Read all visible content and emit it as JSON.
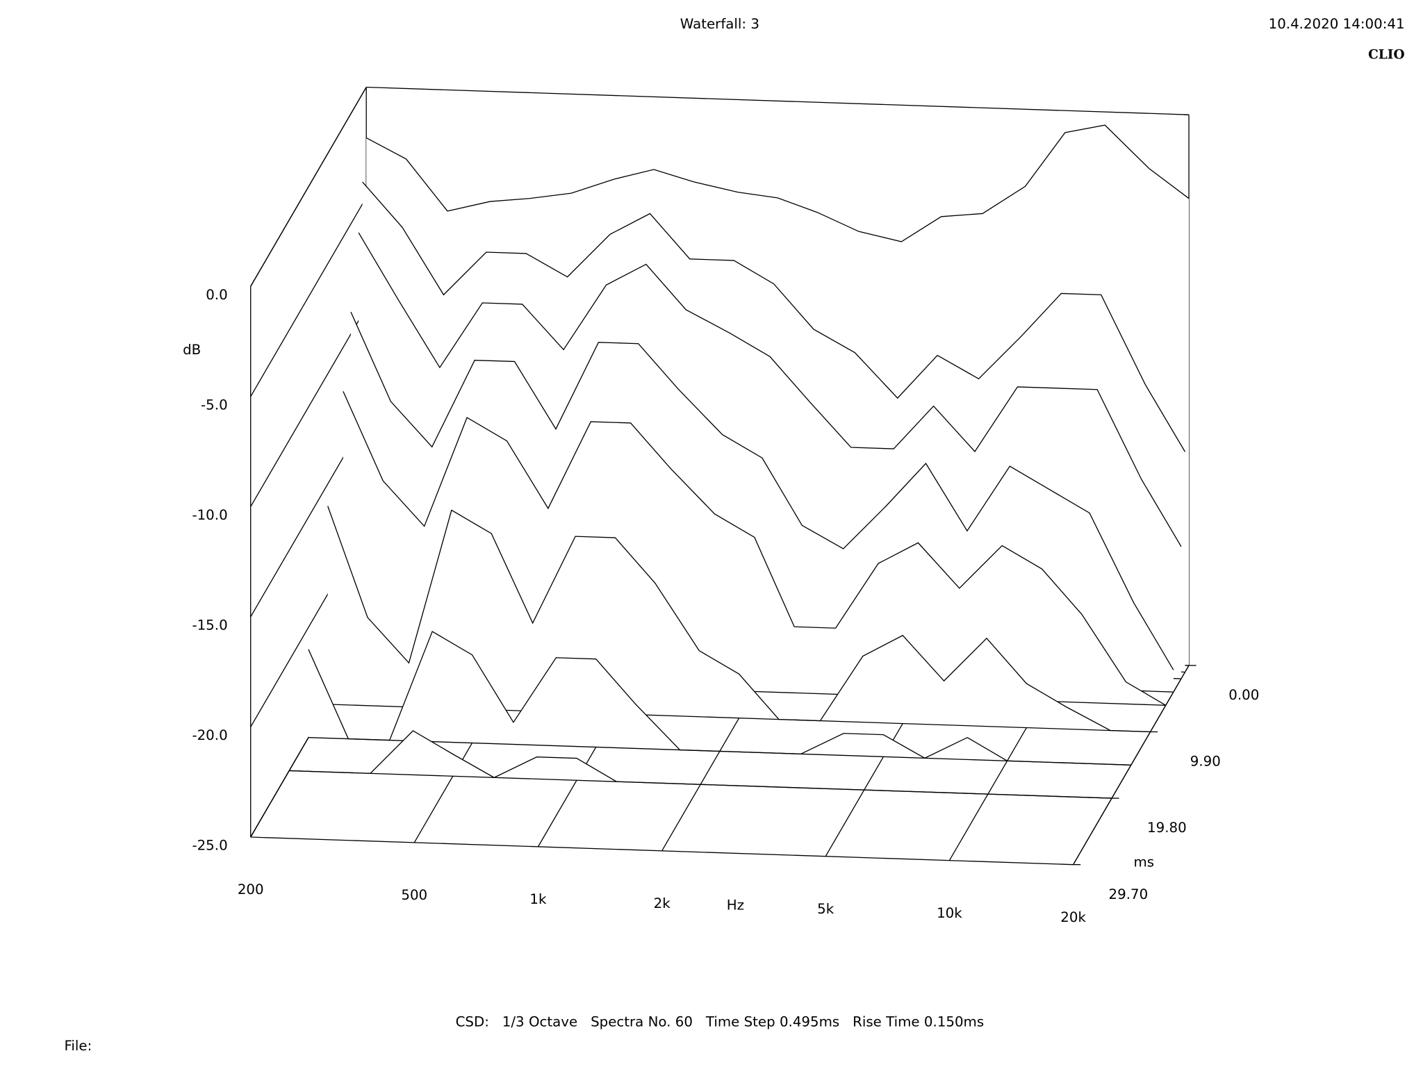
{
  "chart_data": {
    "type": "waterfall",
    "title": "Waterfall: 3",
    "timestamp": "10.4.2020 14:00:41",
    "brand": "CLIO",
    "xlabel": "Hz",
    "ylabel": "dB",
    "zlabel": "ms",
    "footnote": "CSD:   1/3 Octave   Spectra No. 60   Time Step 0.495ms   Rise Time 0.150ms",
    "file_label": "File:",
    "xscale": "log",
    "xlim": [
      200,
      20000
    ],
    "xticks": [
      200,
      500,
      {
        "value": 1000,
        "label": "1k"
      },
      {
        "value": 2000,
        "label": "2k"
      },
      {
        "value": 5000,
        "label": "5k"
      },
      {
        "value": 10000,
        "label": "10k"
      },
      {
        "value": 20000,
        "label": "20k"
      }
    ],
    "ylim": [
      -25,
      0
    ],
    "yticks": [
      {
        "value": 0,
        "label": "0.0"
      },
      {
        "value": -5,
        "label": "-5.0"
      },
      {
        "value": -10,
        "label": "-10.0"
      },
      {
        "value": -15,
        "label": "-15.0"
      },
      {
        "value": -20,
        "label": "-20.0"
      },
      {
        "value": -25,
        "label": "-25.0"
      }
    ],
    "zlim": [
      0,
      29.7
    ],
    "zticks": [
      {
        "value": 0,
        "label": "0.00"
      },
      {
        "value": 9.9,
        "label": "9.90"
      },
      {
        "value": 19.8,
        "label": "19.80"
      },
      {
        "value": 29.7,
        "label": "29.70"
      }
    ],
    "color": "#000000",
    "x": [
      200,
      250,
      315,
      400,
      500,
      630,
      800,
      1000,
      1250,
      1600,
      2000,
      2500,
      3150,
      4000,
      5000,
      6300,
      8000,
      10000,
      12500,
      16000,
      20000
    ],
    "series": [
      {
        "time": 0,
        "values": [
          -2.3,
          -3.2,
          -5.5,
          -5.0,
          -4.8,
          -4.5,
          -3.8,
          -3.3,
          -3.8,
          -4.2,
          -4.4,
          -5.0,
          -5.8,
          -6.2,
          -5.0,
          -4.8,
          -3.5,
          -1.0,
          -0.6,
          -2.5,
          -3.8
        ]
      },
      {
        "time": 0.99,
        "values": [
          -4,
          -6,
          -9,
          -7,
          -7,
          -8,
          -6,
          -5,
          -7,
          -7,
          -8,
          -10,
          -11,
          -13,
          -11,
          -12,
          -10,
          -8,
          -8,
          -12,
          -15
        ]
      },
      {
        "time": 1.98,
        "values": [
          -6,
          -9,
          -12,
          -9,
          -9,
          -11,
          -8,
          -7,
          -9,
          -10,
          -11,
          -13,
          -15,
          -15,
          -13,
          -15,
          -12,
          -12,
          -12,
          -16,
          -19
        ]
      },
      {
        "time": 3.96,
        "values": [
          -9,
          -13,
          -15,
          -11,
          -11,
          -14,
          -10,
          -10,
          -12,
          -14,
          -15,
          -18,
          -19,
          -17,
          -15,
          -18,
          -15,
          -16,
          -17,
          -21,
          -24
        ]
      },
      {
        "time": 5.94,
        "values": [
          -12,
          -16,
          -18,
          -13,
          -14,
          -17,
          -13,
          -13,
          -15,
          -17,
          -18,
          -22,
          -22,
          -19,
          -18,
          -20,
          -18,
          -19,
          -21,
          -24,
          -25
        ]
      },
      {
        "time": 9.9,
        "values": [
          -16,
          -21,
          -23,
          -16,
          -17,
          -21,
          -17,
          -17,
          -19,
          -22,
          -23,
          -25,
          -25,
          -22,
          -21,
          -23,
          -21,
          -23,
          -24,
          -25,
          -25
        ]
      },
      {
        "time": 14.85,
        "values": [
          -21,
          -25,
          -25,
          -20,
          -21,
          -24,
          -21,
          -21,
          -23,
          -25,
          -25,
          -25,
          -25,
          -24,
          -24,
          -25,
          -24,
          -25,
          -25,
          -25,
          -25
        ]
      },
      {
        "time": 19.8,
        "values": [
          -25,
          -25,
          -25,
          -23,
          -24,
          -25,
          -24,
          -24,
          -25,
          -25,
          -25,
          -25,
          -25,
          -25,
          -25,
          -25,
          -25,
          -25,
          -25,
          -25,
          -25
        ]
      }
    ]
  }
}
